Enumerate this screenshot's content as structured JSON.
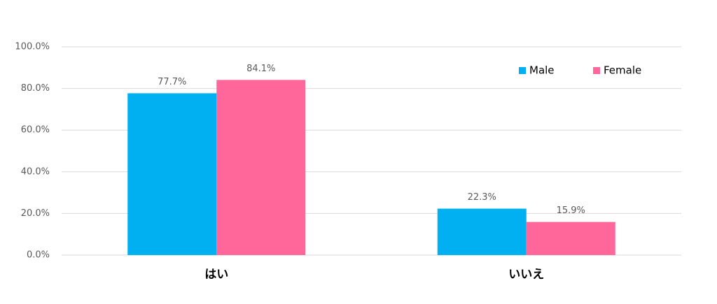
{
  "chart_data": {
    "type": "bar",
    "categories": [
      "はい",
      "いいえ"
    ],
    "series": [
      {
        "name": "Male",
        "color": "#00b0f0",
        "values": [
          77.7,
          22.3
        ],
        "value_labels": [
          "77.7%",
          "22.3%"
        ]
      },
      {
        "name": "Female",
        "color": "#ff6699",
        "values": [
          84.1,
          15.9
        ],
        "value_labels": [
          "84.1%",
          "15.9%"
        ]
      }
    ],
    "ylim": [
      0,
      100
    ],
    "yticks": [
      {
        "value": 0,
        "label": "0.0%"
      },
      {
        "value": 20,
        "label": "20.0%"
      },
      {
        "value": 40,
        "label": "40.0%"
      },
      {
        "value": 60,
        "label": "60.0%"
      },
      {
        "value": 80,
        "label": "80.0%"
      },
      {
        "value": 100,
        "label": "100.0%"
      }
    ],
    "grid": true,
    "legend": "top-right"
  }
}
